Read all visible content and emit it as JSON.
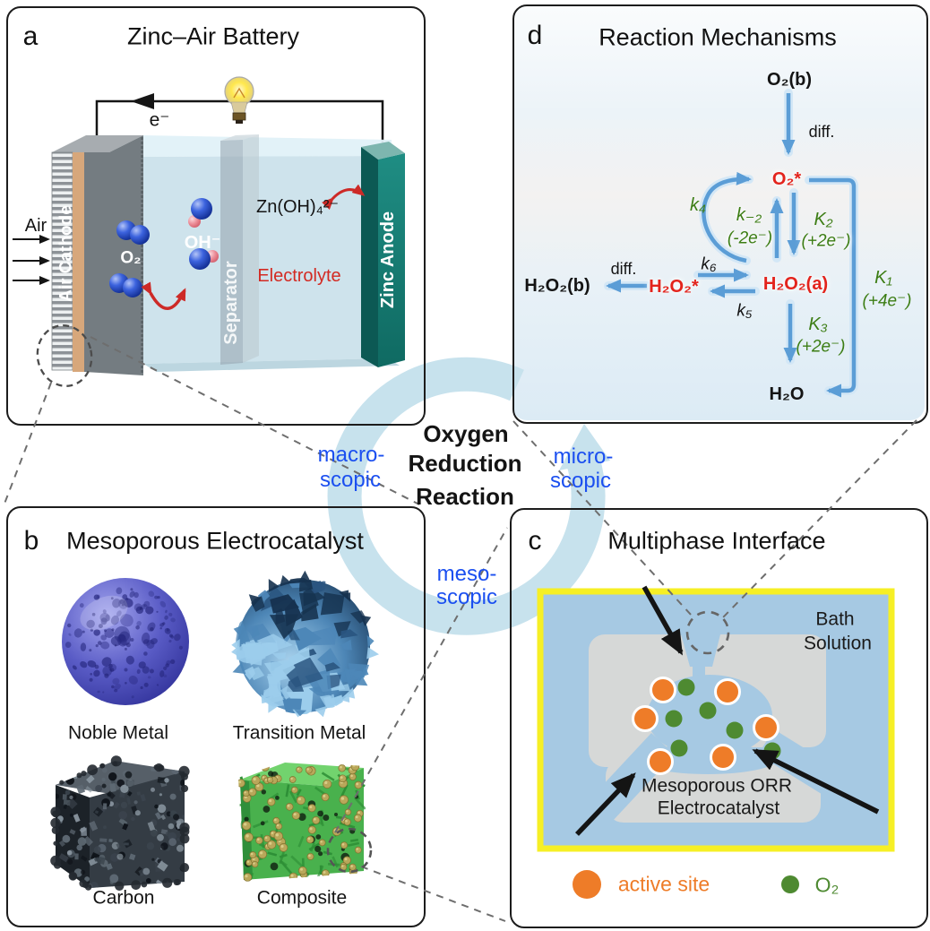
{
  "panel_a": {
    "letter": "a",
    "title": "Zinc–Air Battery",
    "labels": {
      "air": "Air",
      "electron": "e⁻",
      "o2": "O₂",
      "hydroxide": "OH⁻",
      "zincate": "Zn(OH)₄²⁻",
      "electrolyte": "Electrolyte",
      "air_cathode": "Air Cathode",
      "separator": "Separator",
      "zinc_anode": "Zinc Anode"
    }
  },
  "panel_b": {
    "letter": "b",
    "title": "Mesoporous Electrocatalyst",
    "items": [
      {
        "label": "Noble Metal"
      },
      {
        "label": "Transition Metal"
      },
      {
        "label": "Carbon"
      },
      {
        "label": "Composite"
      }
    ]
  },
  "panel_c": {
    "letter": "c",
    "title": "Multiphase Interface",
    "labels": {
      "bath_line1": "Bath",
      "bath_line2": "Solution",
      "catalyst_line1": "Mesoporous ORR",
      "catalyst_line2": "Electrocatalyst"
    },
    "legend": {
      "active_site": "active site",
      "o2": "O₂"
    }
  },
  "panel_d": {
    "letter": "d",
    "title": "Reaction Mechanisms",
    "species": {
      "o2_bulk": "O₂(b)",
      "o2_ads": "O₂*",
      "h2o2_ads": "H₂O₂*",
      "h2o2_a": "H₂O₂(a)",
      "h2o2_bulk": "H₂O₂(b)",
      "h2o": "H₂O"
    },
    "steps": {
      "diff_top": "diff.",
      "diff_left": "diff.",
      "k4": "k₄",
      "k_minus2": "k₋₂",
      "k_minus2_e": "(-2e⁻)",
      "K2": "K₂",
      "K2_e": "(+2e⁻)",
      "K1": "K₁",
      "K1_e": "(+4e⁻)",
      "K3": "K₃",
      "K3_e": "(+2e⁻)",
      "k6": "k₆",
      "k5": "k₅"
    }
  },
  "center": {
    "title_lines": [
      "Oxygen",
      "Reduction",
      "Reaction"
    ],
    "scales": {
      "macro": [
        "macro-",
        "scopic"
      ],
      "micro": [
        "micro-",
        "scopic"
      ],
      "meso": [
        "meso-",
        "scopic"
      ]
    }
  },
  "colors": {
    "scale_label_blue": "#1b4ff0",
    "kinetics_green": "#3c7d14",
    "species_red": "#e3231c",
    "active_site_orange": "#ee7c28",
    "o2_green": "#4e8a31",
    "ring_blue": "#c7e2ed",
    "mechanism_arrow_blue": "#5b9dd6",
    "interface_border_yellow": "#f6ef25",
    "bath_blue": "#a6c9e3",
    "catalyst_gray": "#d6d8d7",
    "zinc_anode_teal": "#157a72",
    "red_arrow": "#cd2a27"
  }
}
